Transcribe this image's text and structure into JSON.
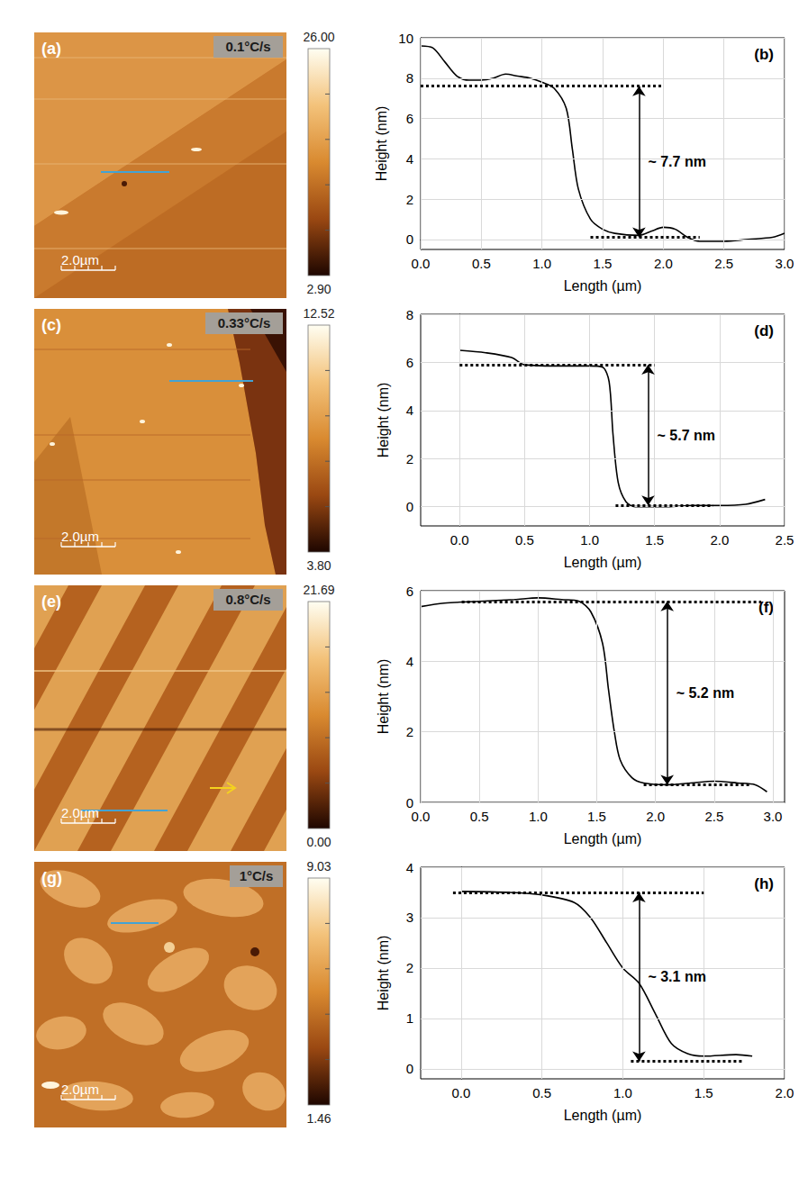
{
  "chart_data": [
    {
      "type": "line",
      "panel": "(b)",
      "x_label": "Length (µm)",
      "y_label": "Height (nm)",
      "grid": true,
      "xlim": [
        0,
        3.0
      ],
      "xticks": [
        {
          "value": 0,
          "label": "0.0"
        },
        0.5,
        {
          "value": 1,
          "label": "1.0"
        },
        1.5,
        {
          "value": 2,
          "label": "2.0"
        },
        2.5,
        {
          "value": 3,
          "label": "3.0"
        }
      ],
      "ylim": [
        -0.5,
        10
      ],
      "yticks": [
        0,
        2,
        4,
        6,
        8,
        10
      ],
      "x": [
        0,
        0.1,
        0.2,
        0.3,
        0.4,
        0.5,
        0.6,
        0.7,
        0.8,
        0.9,
        1.0,
        1.1,
        1.2,
        1.25,
        1.3,
        1.4,
        1.5,
        1.6,
        1.8,
        1.9,
        2.0,
        2.1,
        2.2,
        2.3,
        2.5,
        2.7,
        2.9,
        3.0
      ],
      "values": [
        9.6,
        9.5,
        8.8,
        8.1,
        7.9,
        7.9,
        8.0,
        8.2,
        8.1,
        8.0,
        7.8,
        7.5,
        6.5,
        4.5,
        2.5,
        1.0,
        0.5,
        0.3,
        0.2,
        0.4,
        0.6,
        0.5,
        0.1,
        -0.1,
        -0.1,
        0.0,
        0.1,
        0.3
      ],
      "reference_lines": [
        {
          "y": 7.6,
          "x": [
            0,
            2.0
          ],
          "line_style": "dotted"
        },
        {
          "y": 0.1,
          "x": [
            1.4,
            2.3
          ],
          "line_style": "dotted"
        }
      ],
      "arrow": {
        "x": 1.8,
        "y": [
          0.1,
          7.6
        ]
      },
      "annotation": "~ 7.7 nm"
    },
    {
      "type": "line",
      "panel": "(d)",
      "x_label": "Length (µm)",
      "y_label": "Height (nm)",
      "grid": true,
      "xlim": [
        -0.3,
        2.5
      ],
      "xticks": [
        {
          "value": 0,
          "label": "0.0"
        },
        0.5,
        {
          "value": 1,
          "label": "1.0"
        },
        1.5,
        {
          "value": 2,
          "label": "2.0"
        },
        2.5
      ],
      "ylim": [
        -0.8,
        8
      ],
      "yticks": [
        0,
        2,
        4,
        6,
        8
      ],
      "x": [
        0,
        0.2,
        0.4,
        0.5,
        0.8,
        1.0,
        1.1,
        1.15,
        1.18,
        1.22,
        1.28,
        1.35,
        1.6,
        1.8,
        2.0,
        2.2,
        2.35
      ],
      "values": [
        6.5,
        6.4,
        6.2,
        5.9,
        5.85,
        5.85,
        5.8,
        5.2,
        3.0,
        1.0,
        0.2,
        0.0,
        0.0,
        0.05,
        0.05,
        0.1,
        0.3
      ],
      "reference_lines": [
        {
          "y": 5.9,
          "x": [
            0,
            1.5
          ],
          "line_style": "dotted"
        },
        {
          "y": 0.05,
          "x": [
            1.2,
            1.95
          ],
          "line_style": "dotted"
        }
      ],
      "arrow": {
        "x": 1.45,
        "y": [
          0.05,
          5.9
        ]
      },
      "annotation": "~ 5.7 nm"
    },
    {
      "type": "line",
      "panel": "(f)",
      "x_label": "Length (µm)",
      "y_label": "Height (nm)",
      "grid": true,
      "xlim": [
        0,
        3.1
      ],
      "xticks": [
        {
          "value": 0,
          "label": "0.0"
        },
        0.5,
        {
          "value": 1,
          "label": "1.0"
        },
        1.5,
        {
          "value": 2,
          "label": "2.0"
        },
        2.5,
        {
          "value": 3,
          "label": "3.0"
        }
      ],
      "ylim": [
        0,
        6
      ],
      "yticks": [
        0,
        2,
        4,
        6
      ],
      "x": [
        0,
        0.2,
        0.5,
        0.8,
        1.0,
        1.2,
        1.35,
        1.45,
        1.55,
        1.6,
        1.65,
        1.7,
        1.8,
        1.9,
        2.1,
        2.3,
        2.5,
        2.7,
        2.85,
        2.95
      ],
      "values": [
        5.55,
        5.65,
        5.7,
        5.75,
        5.8,
        5.75,
        5.7,
        5.4,
        4.5,
        3.2,
        2.0,
        1.2,
        0.7,
        0.55,
        0.5,
        0.55,
        0.6,
        0.55,
        0.5,
        0.3
      ],
      "reference_lines": [
        {
          "y": 5.7,
          "x": [
            0.35,
            2.9
          ],
          "line_style": "dotted"
        },
        {
          "y": 0.5,
          "x": [
            1.9,
            2.8
          ],
          "line_style": "dotted"
        }
      ],
      "arrow": {
        "x": 2.1,
        "y": [
          0.5,
          5.7
        ]
      },
      "annotation": "~ 5.2 nm"
    },
    {
      "type": "line",
      "panel": "(h)",
      "x_label": "Length (µm)",
      "y_label": "Height (nm)",
      "grid": true,
      "xlim": [
        -0.25,
        2.0
      ],
      "xticks": [
        {
          "value": 0,
          "label": "0.0"
        },
        0.5,
        {
          "value": 1,
          "label": "1.0"
        },
        1.5,
        {
          "value": 2,
          "label": "2.0"
        }
      ],
      "ylim": [
        -0.2,
        4
      ],
      "yticks": [
        0,
        1,
        2,
        3,
        4
      ],
      "x": [
        0,
        0.3,
        0.5,
        0.7,
        0.8,
        0.9,
        1.0,
        1.1,
        1.2,
        1.3,
        1.4,
        1.5,
        1.7,
        1.8
      ],
      "values": [
        3.52,
        3.5,
        3.45,
        3.3,
        3.0,
        2.5,
        2.0,
        1.7,
        1.1,
        0.5,
        0.3,
        0.25,
        0.28,
        0.25
      ],
      "reference_lines": [
        {
          "y": 3.5,
          "x": [
            -0.05,
            1.5
          ],
          "line_style": "dotted"
        },
        {
          "y": 0.15,
          "x": [
            1.05,
            1.75
          ],
          "line_style": "dotted"
        }
      ],
      "arrow": {
        "x": 1.1,
        "y": [
          0.15,
          3.5
        ]
      },
      "annotation": "~ 3.1 nm"
    }
  ],
  "afm_images": [
    {
      "panel": "(a)",
      "rate": "0.1°C/s",
      "scale_bar": "2.0µm",
      "colorbar": {
        "max": {
          "value": 26,
          "label": "26.00"
        },
        "min": {
          "value": 2.9,
          "label": "2.90"
        }
      }
    },
    {
      "panel": "(c)",
      "rate": "0.33°C/s",
      "scale_bar": "2.0µm",
      "colorbar": {
        "max": 12.52,
        "min": {
          "value": 3.8,
          "label": "3.80"
        }
      }
    },
    {
      "panel": "(e)",
      "rate": "0.8°C/s",
      "scale_bar": "2.0µm",
      "colorbar": {
        "max": 21.69,
        "min": {
          "value": 0,
          "label": "0.00"
        }
      }
    },
    {
      "panel": "(g)",
      "rate": "1°C/s",
      "scale_bar": "2.0µm",
      "colorbar": {
        "max": 9.03,
        "min": 1.46
      }
    }
  ]
}
